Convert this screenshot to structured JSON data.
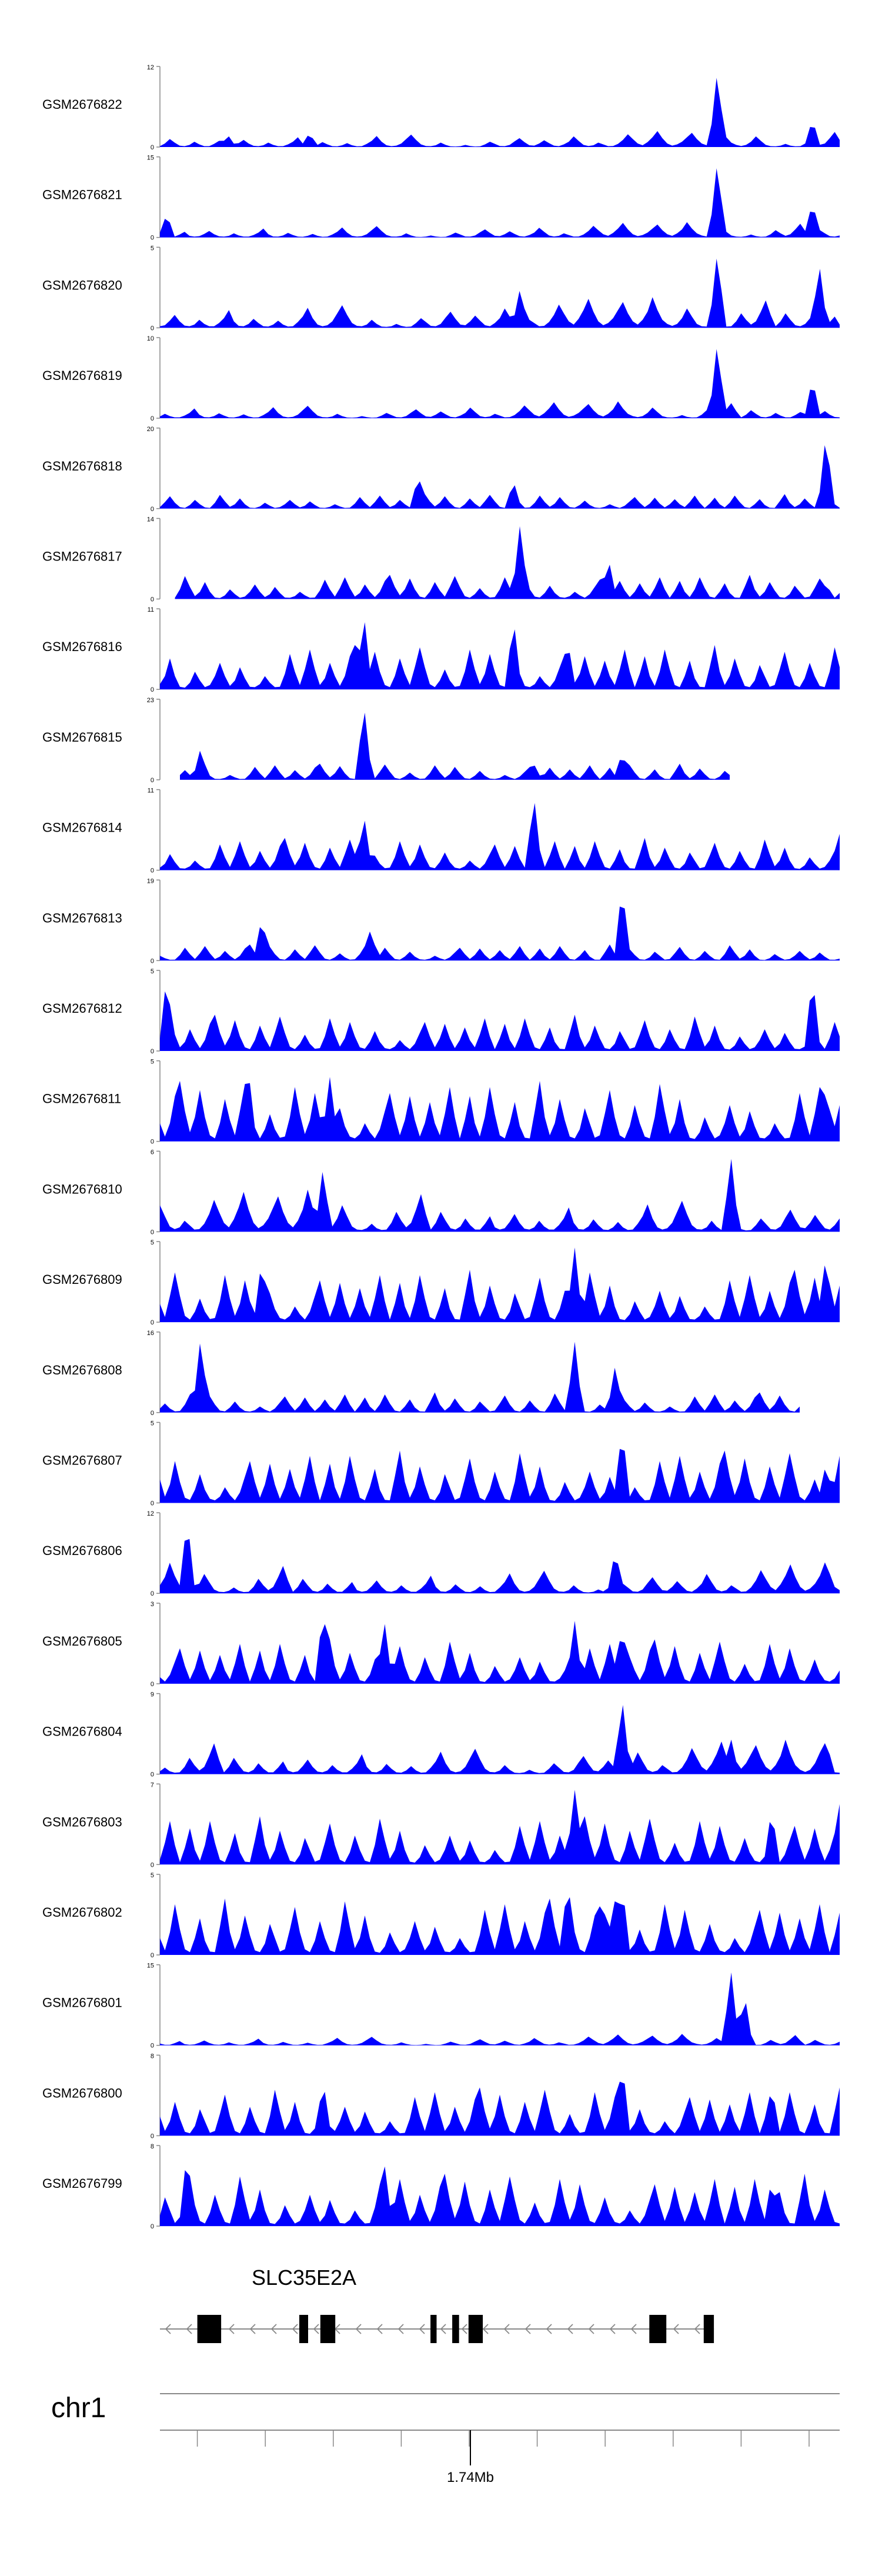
{
  "chart_data": {
    "type": "area",
    "track_style": "coverage",
    "fill_color": "#0000ff",
    "axis_color": "#000000",
    "profiles": {
      "A": [
        0.05,
        0.2,
        0.45,
        0.25,
        0.08,
        0.05,
        0.12,
        0.3,
        0.15,
        0.05,
        0.05,
        0.18,
        0.35,
        0.1,
        0.05,
        0.08,
        0.22,
        0.4,
        0.2,
        0.07,
        0.05,
        0.1,
        0.25,
        0.12,
        0.05,
        0.05,
        0.15,
        0.3,
        0.55,
        0.2,
        0.06,
        0.05,
        0.12,
        0.28,
        0.15,
        0.05,
        0.04,
        0.1,
        0.22,
        0.1,
        0.04,
        0.05,
        0.18,
        0.35,
        0.62,
        0.3,
        0.1,
        0.05,
        0.08,
        0.2,
        0.45,
        0.7,
        0.4,
        0.15,
        0.06,
        0.05,
        0.1,
        0.25,
        0.12,
        0.04,
        0.03,
        0.05,
        0.12,
        0.06,
        0.03,
        0.04,
        0.15,
        0.3,
        0.18,
        0.06,
        0.05,
        0.12,
        0.32,
        0.5,
        0.28,
        0.1,
        0.08,
        0.2,
        0.38,
        0.22,
        0.08,
        0.05,
        0.15,
        0.3,
        0.6,
        0.35,
        0.12,
        0.06,
        0.1,
        0.25,
        0.15,
        0.05,
        0.06,
        0.18,
        0.4,
        0.72,
        0.45,
        0.2,
        0.1,
        0.28,
        0.55,
        0.9,
        0.5,
        0.2,
        0.08,
        0.15,
        0.3,
        0.55,
        0.8,
        0.45,
        0.2,
        0.1,
        0.25,
        0.5,
        0.95,
        0.55,
        0.25,
        0.12,
        0.06,
        0.12,
        0.3,
        0.6,
        0.35,
        0.12,
        0.05,
        0.04,
        0.08,
        0.18,
        0.08,
        0.04,
        0.05,
        0.2,
        0.45,
        0.25,
        0.1,
        0.2,
        0.5,
        0.85,
        0.4
      ],
      "B": [
        0.05,
        0.35,
        0.75,
        0.3,
        0.08,
        0.4,
        0.9,
        0.45,
        0.1,
        0.05,
        0.3,
        0.65,
        0.25,
        0.06,
        0.05,
        0.5,
        1.0,
        0.4,
        0.1,
        0.3,
        0.7,
        0.35,
        0.08,
        0.05,
        0.2,
        0.55,
        0.3,
        0.06,
        0.1,
        0.45,
        0.85,
        0.4,
        0.1,
        0.05,
        0.25,
        0.6,
        0.3,
        0.08,
        0.05,
        0.4,
        0.95,
        0.5,
        0.12,
        0.3,
        0.7,
        0.3,
        0.06,
        0.04,
        0.15,
        0.4,
        0.2,
        0.05,
        0.1,
        0.3,
        0.6,
        0.3,
        0.08,
        0.2,
        0.5,
        0.25,
        0.06,
        0.05,
        0.12,
        0.3,
        0.15,
        0.05,
        0.06,
        0.35,
        0.8,
        0.4,
        0.1,
        0.45,
        0.9,
        0.45,
        0.1,
        0.25,
        0.6,
        0.3,
        0.08,
        0.3,
        0.75,
        1.0,
        0.5,
        0.15,
        0.4,
        0.85,
        0.4,
        0.1,
        0.05,
        0.3,
        0.7,
        0.35,
        0.1,
        0.5,
        0.95,
        0.5,
        0.12,
        0.05,
        0.2,
        0.45,
        0.2,
        0.06,
        0.08,
        0.4,
        0.9,
        0.45,
        0.12,
        0.35,
        0.8,
        0.4,
        0.1,
        0.06,
        0.25,
        0.55,
        0.25,
        0.08,
        0.05,
        0.12,
        0.3,
        0.15,
        0.05,
        0.2,
        0.5,
        0.8,
        0.4,
        0.1,
        0.35,
        0.75,
        0.35,
        0.08,
        0.3,
        0.65,
        0.3,
        0.1,
        0.45,
        0.9,
        0.4
      ]
    },
    "genome_axis": {
      "chromosome": "chr1",
      "tick_label": "1.74Mb",
      "tick_count": 10,
      "labeled_tick_index": 4.5
    },
    "gene": {
      "name": "SLC35E2A",
      "strand": "-",
      "exons": [
        [
          0.055,
          0.09
        ],
        [
          0.205,
          0.218
        ],
        [
          0.236,
          0.258
        ],
        [
          0.398,
          0.407
        ],
        [
          0.43,
          0.44
        ],
        [
          0.454,
          0.475
        ],
        [
          0.72,
          0.745
        ],
        [
          0.8,
          0.815
        ]
      ],
      "intron_span": [
        0.0,
        0.815
      ]
    },
    "tracks": [
      {
        "name": "GSM2676822",
        "ymax": "12",
        "ylim": [
          0,
          12
        ],
        "spikes": [
          [
            0.1,
            0.15
          ],
          [
            0.22,
            0.18
          ],
          [
            0.82,
            0.95
          ],
          [
            0.96,
            0.35
          ]
        ],
        "base": 0.22,
        "start": 0,
        "end": 1,
        "profile": "A"
      },
      {
        "name": "GSM2676821",
        "ymax": "15",
        "ylim": [
          0,
          15
        ],
        "spikes": [
          [
            0.01,
            0.3
          ],
          [
            0.82,
            0.95
          ],
          [
            0.96,
            0.45
          ]
        ],
        "base": 0.2,
        "start": 0,
        "end": 1,
        "profile": "A"
      },
      {
        "name": "GSM2676820",
        "ymax": "5",
        "ylim": [
          0,
          5
        ],
        "spikes": [
          [
            0.53,
            0.5
          ],
          [
            0.82,
            0.95
          ],
          [
            0.97,
            0.8
          ]
        ],
        "base": 0.4,
        "start": 0,
        "end": 1,
        "profile": "A"
      },
      {
        "name": "GSM2676819",
        "ymax": "10",
        "ylim": [
          0,
          10
        ],
        "spikes": [
          [
            0.82,
            0.95
          ],
          [
            0.96,
            0.5
          ]
        ],
        "base": 0.22,
        "start": 0,
        "end": 1,
        "profile": "A"
      },
      {
        "name": "GSM2676818",
        "ymax": "20",
        "ylim": [
          0,
          20
        ],
        "spikes": [
          [
            0.38,
            0.42
          ],
          [
            0.52,
            0.35
          ],
          [
            0.98,
            0.95
          ]
        ],
        "base": 0.18,
        "start": 0,
        "end": 1,
        "profile": "B"
      },
      {
        "name": "GSM2676817",
        "ymax": "14",
        "ylim": [
          0,
          14
        ],
        "spikes": [
          [
            0.53,
            0.95
          ],
          [
            0.66,
            0.5
          ],
          [
            0.98,
            0.2
          ]
        ],
        "base": 0.3,
        "start": 0.02,
        "end": 1,
        "profile": "B"
      },
      {
        "name": "GSM2676816",
        "ymax": "11",
        "ylim": [
          0,
          11
        ],
        "spikes": [
          [
            0.3,
            0.95
          ],
          [
            0.52,
            0.9
          ],
          [
            0.6,
            0.6
          ]
        ],
        "base": 0.55,
        "start": 0,
        "end": 1,
        "profile": "B"
      },
      {
        "name": "GSM2676815",
        "ymax": "23",
        "ylim": [
          0,
          23
        ],
        "spikes": [
          [
            0.06,
            0.4
          ],
          [
            0.3,
            0.95
          ],
          [
            0.55,
            0.2
          ],
          [
            0.68,
            0.35
          ]
        ],
        "base": 0.2,
        "start": 0.03,
        "end": 0.84,
        "profile": "B"
      },
      {
        "name": "GSM2676814",
        "ymax": "11",
        "ylim": [
          0,
          11
        ],
        "spikes": [
          [
            0.3,
            0.7
          ],
          [
            0.55,
            0.95
          ],
          [
            1.0,
            0.45
          ]
        ],
        "base": 0.4,
        "start": 0,
        "end": 1,
        "profile": "B"
      },
      {
        "name": "GSM2676813",
        "ymax": "19",
        "ylim": [
          0,
          19
        ],
        "spikes": [
          [
            0.15,
            0.55
          ],
          [
            0.31,
            0.4
          ],
          [
            0.68,
            0.95
          ]
        ],
        "base": 0.2,
        "start": 0,
        "end": 1,
        "profile": "B"
      },
      {
        "name": "GSM2676812",
        "ymax": "5",
        "ylim": [
          0,
          5
        ],
        "spikes": [
          [
            0.01,
            0.95
          ],
          [
            0.96,
            0.95
          ]
        ],
        "base": 0.45,
        "start": 0,
        "end": 1,
        "profile": "B"
      },
      {
        "name": "GSM2676811",
        "ymax": "5",
        "ylim": [
          0,
          5
        ],
        "spikes": [
          [
            0.13,
            0.9
          ],
          [
            0.25,
            0.8
          ],
          [
            0.98,
            0.7
          ]
        ],
        "base": 0.75,
        "start": 0,
        "end": 1,
        "profile": "B"
      },
      {
        "name": "GSM2676810",
        "ymax": "6",
        "ylim": [
          0,
          6
        ],
        "spikes": [
          [
            0.24,
            0.8
          ],
          [
            0.84,
            0.95
          ]
        ],
        "base": 0.55,
        "start": 0,
        "end": 1,
        "profile": "A"
      },
      {
        "name": "GSM2676809",
        "ymax": "5",
        "ylim": [
          0,
          5
        ],
        "spikes": [
          [
            0.15,
            0.8
          ],
          [
            0.61,
            0.95
          ],
          [
            0.98,
            0.85
          ]
        ],
        "base": 0.65,
        "start": 0,
        "end": 1,
        "profile": "B"
      },
      {
        "name": "GSM2676808",
        "ymax": "16",
        "ylim": [
          0,
          16
        ],
        "spikes": [
          [
            0.06,
            0.95
          ],
          [
            0.61,
            0.9
          ],
          [
            0.67,
            0.6
          ]
        ],
        "base": 0.25,
        "start": 0,
        "end": 0.94,
        "profile": "B"
      },
      {
        "name": "GSM2676807",
        "ymax": "5",
        "ylim": [
          0,
          5
        ],
        "spikes": [
          [
            0.68,
            0.95
          ],
          [
            0.98,
            0.5
          ]
        ],
        "base": 0.65,
        "start": 0,
        "end": 1,
        "profile": "B"
      },
      {
        "name": "GSM2676806",
        "ymax": "12",
        "ylim": [
          0,
          12
        ],
        "spikes": [
          [
            0.04,
            0.95
          ],
          [
            0.67,
            0.55
          ],
          [
            0.98,
            0.45
          ]
        ],
        "base": 0.4,
        "start": 0,
        "end": 1,
        "profile": "A"
      },
      {
        "name": "GSM2676805",
        "ymax": "3",
        "ylim": [
          0,
          3
        ],
        "spikes": [
          [
            0.24,
            0.95
          ],
          [
            0.33,
            0.8
          ],
          [
            0.61,
            0.8
          ],
          [
            0.68,
            0.75
          ]
        ],
        "base": 0.55,
        "start": 0,
        "end": 1,
        "profile": "B"
      },
      {
        "name": "GSM2676804",
        "ymax": "9",
        "ylim": [
          0,
          9
        ],
        "spikes": [
          [
            0.68,
            0.95
          ],
          [
            0.84,
            0.45
          ],
          [
            0.98,
            0.45
          ]
        ],
        "base": 0.45,
        "start": 0,
        "end": 1,
        "profile": "A"
      },
      {
        "name": "GSM2676803",
        "ymax": "7",
        "ylim": [
          0,
          7
        ],
        "spikes": [
          [
            0.61,
            0.95
          ],
          [
            0.9,
            0.7
          ],
          [
            1.0,
            0.75
          ]
        ],
        "base": 0.6,
        "start": 0,
        "end": 1,
        "profile": "B"
      },
      {
        "name": "GSM2676802",
        "ymax": "5",
        "ylim": [
          0,
          5
        ],
        "spikes": [
          [
            0.6,
            0.95
          ],
          [
            0.65,
            0.8
          ],
          [
            0.68,
            0.9
          ]
        ],
        "base": 0.7,
        "start": 0,
        "end": 1,
        "profile": "B"
      },
      {
        "name": "GSM2676801",
        "ymax": "15",
        "ylim": [
          0,
          15
        ],
        "spikes": [
          [
            0.84,
            0.95
          ],
          [
            0.86,
            0.65
          ]
        ],
        "base": 0.15,
        "start": 0,
        "end": 1,
        "profile": "A"
      },
      {
        "name": "GSM2676800",
        "ymax": "8",
        "ylim": [
          0,
          8
        ],
        "spikes": [
          [
            0.24,
            0.7
          ],
          [
            0.68,
            0.95
          ],
          [
            0.9,
            0.65
          ]
        ],
        "base": 0.6,
        "start": 0,
        "end": 1,
        "profile": "B"
      },
      {
        "name": "GSM2676799",
        "ymax": "8",
        "ylim": [
          0,
          8
        ],
        "spikes": [
          [
            0.04,
            0.95
          ],
          [
            0.33,
            0.8
          ],
          [
            0.9,
            0.6
          ]
        ],
        "base": 0.65,
        "start": 0,
        "end": 1,
        "profile": "B"
      }
    ]
  }
}
